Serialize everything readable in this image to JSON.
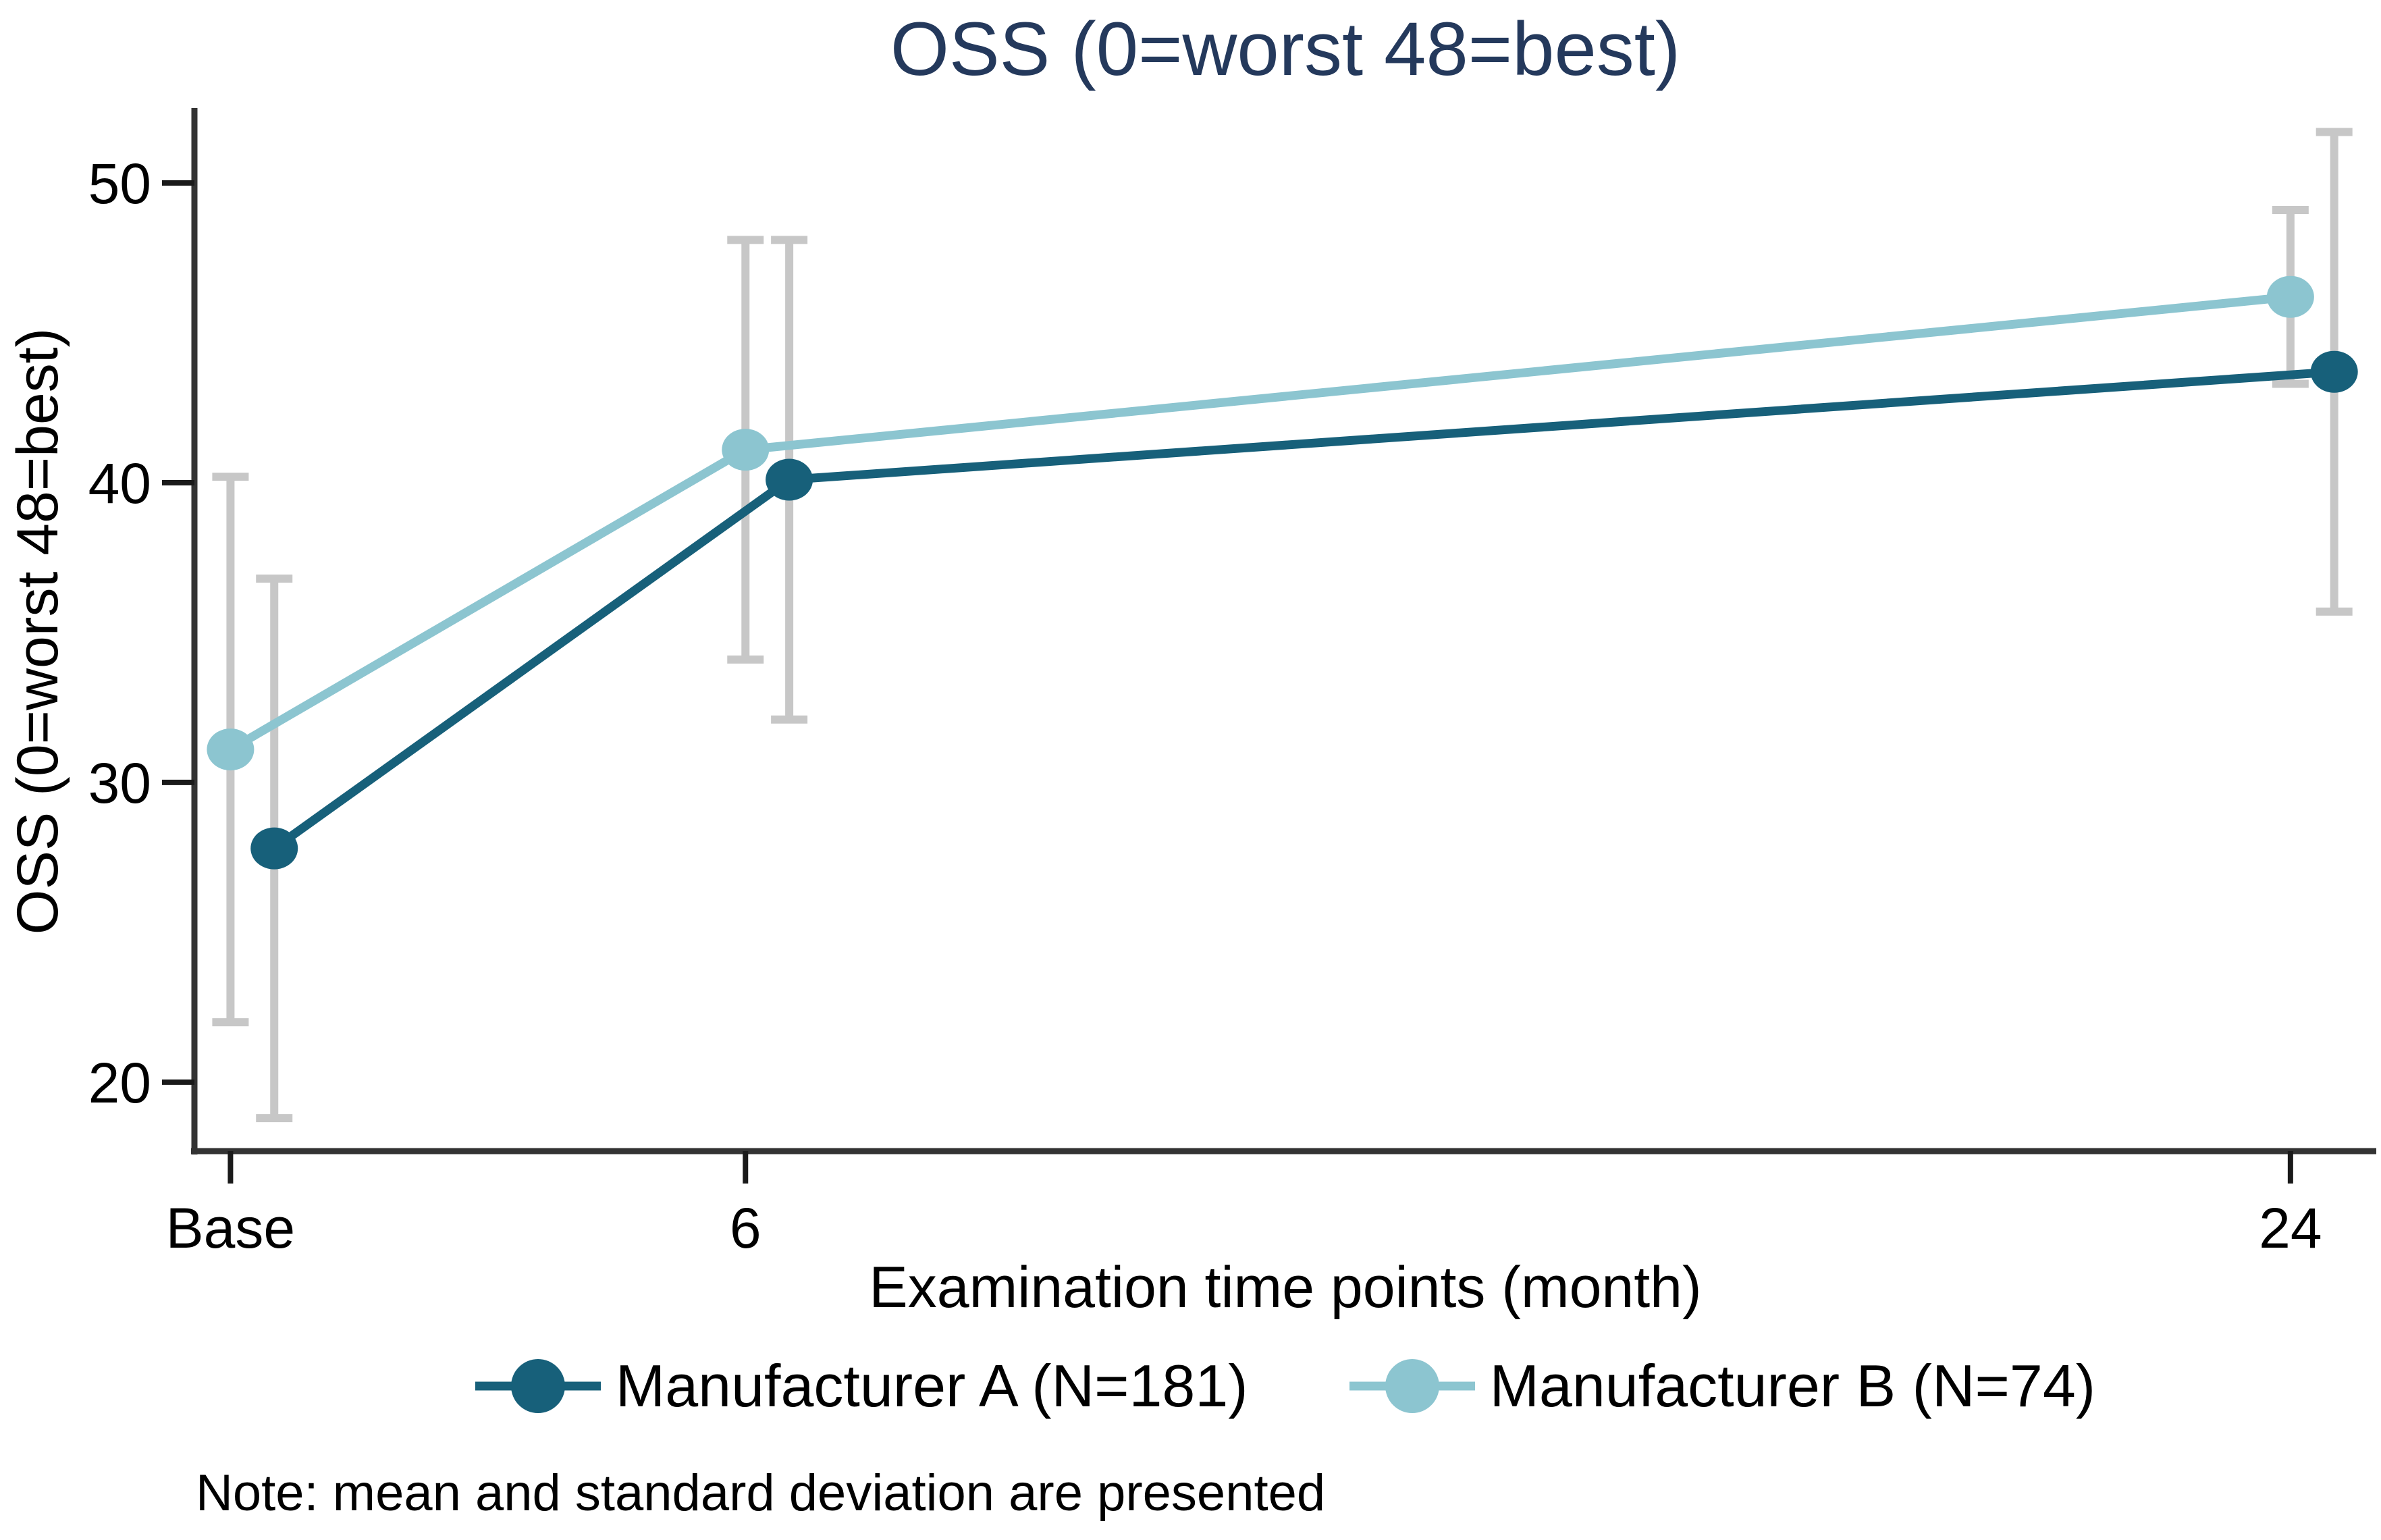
{
  "chart_data": {
    "type": "line",
    "title": "OSS (0=worst 48=best)",
    "ylabel": "OSS (0=worst 48=best)",
    "xlabel": "Examination time points (month)",
    "note": "Note: mean and standard deviation are presented",
    "legend_position": "bottom",
    "grid": false,
    "error_bars": "mean ± standard deviation",
    "x_ticks": [
      {
        "label": "Base",
        "month": 0
      },
      {
        "label": "6",
        "month": 6
      },
      {
        "label": "24",
        "month": 24
      }
    ],
    "y_ticks": [
      {
        "label": "20",
        "value": 20
      },
      {
        "label": "30",
        "value": 30
      },
      {
        "label": "40",
        "value": 40
      },
      {
        "label": "50",
        "value": 50
      }
    ],
    "xlim": [
      -0.42,
      25.0
    ],
    "ylim": [
      17.7,
      52.5
    ],
    "colors": {
      "axis": "#333333",
      "tick": "#1a1a1a",
      "error_bar": "#C7C7C7",
      "title_text": "#24395C",
      "text": "#000000",
      "series_a": "#17607A",
      "series_b": "#8CC5D0"
    },
    "series": [
      {
        "name": "Manufacturer A (N=181)",
        "color": "#17607A",
        "x_offset_months": 0.51,
        "points": [
          {
            "x_label": "Base",
            "month": 0,
            "mean": 27.8,
            "sd": 9.0
          },
          {
            "x_label": "6",
            "month": 6,
            "mean": 40.1,
            "sd": 8.0
          },
          {
            "x_label": "24",
            "month": 24,
            "mean": 43.7,
            "sd": 8.0
          }
        ]
      },
      {
        "name": "Manufacturer B (N=74)",
        "color": "#8CC5D0",
        "x_offset_months": 0.0,
        "points": [
          {
            "x_label": "Base",
            "month": 0,
            "mean": 31.1,
            "sd": 9.1
          },
          {
            "x_label": "6",
            "month": 6,
            "mean": 41.1,
            "sd": 7.0
          },
          {
            "x_label": "24",
            "month": 24,
            "mean": 46.2,
            "sd": 2.9
          }
        ]
      }
    ]
  }
}
